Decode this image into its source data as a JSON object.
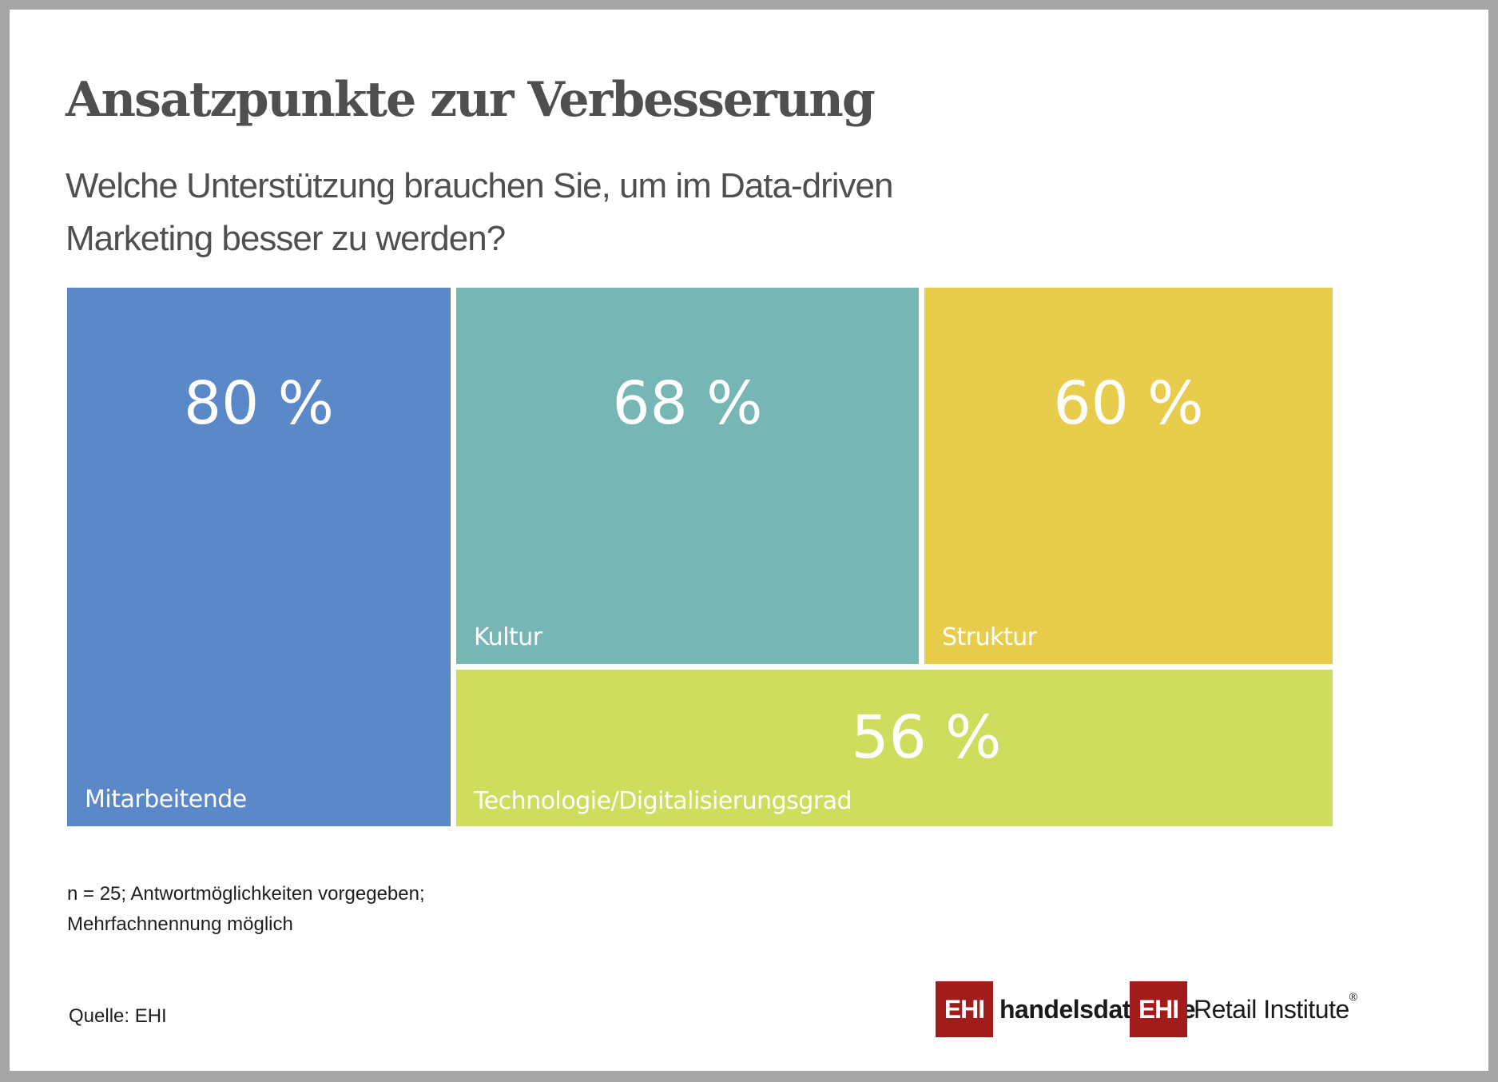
{
  "header": {
    "title": "Ansatzpunkte zur Verbesserung",
    "subtitle_lines": [
      "Welche Unterstützung brauchen Sie, um im Data-driven",
      "Marketing besser zu werden?"
    ]
  },
  "chart_data": {
    "type": "treemap",
    "title": "Ansatzpunkte zur Verbesserung",
    "subtitle": "Welche Unterstützung brauchen Sie, um im Data-driven Marketing besser zu werden?",
    "unit": "%",
    "categories": [
      "Mitarbeitende",
      "Kultur",
      "Struktur",
      "Technologie/Digitalisierungsgrad"
    ],
    "values": [
      80,
      68,
      60,
      56
    ],
    "value_labels": [
      "80 %",
      "68 %",
      "60 %",
      "56 %"
    ],
    "colors": [
      "#5b88c8",
      "#76b7b6",
      "#e8cd4d",
      "#cfdd5f"
    ],
    "legend": "none",
    "grid": false
  },
  "footer": {
    "note_lines": [
      "n = 25; Antwortmöglichkeiten vorgegeben;",
      "Mehrfachnennung möglich"
    ],
    "source": "Quelle: EHI"
  },
  "logos": {
    "handelsdaten": {
      "badge": "EHI",
      "name_part1": "handelsdaten",
      "dot": ".",
      "name_part2": "de"
    },
    "retail_institute": {
      "badge": "EHI",
      "name": "Retail Institute",
      "registered": "®"
    },
    "brand_color": "#a21c1c"
  },
  "colors": {
    "frame": "#a5a5a5",
    "title_text": "#4f4f4f",
    "body_text": "#1e1e1e"
  }
}
